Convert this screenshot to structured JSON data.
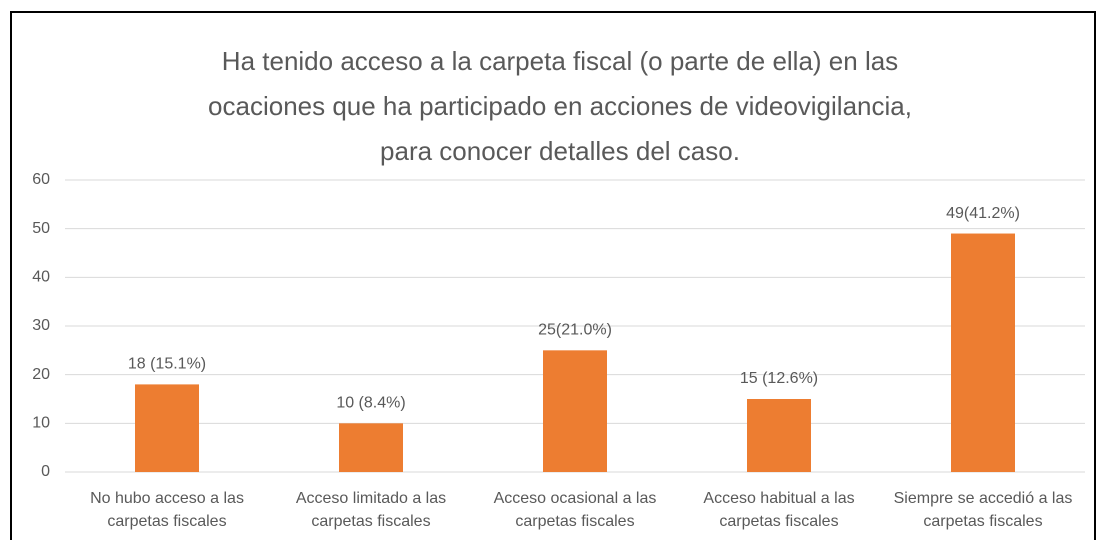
{
  "chart_data": {
    "type": "bar",
    "title": [
      "Ha tenido acceso a la carpeta fiscal (o parte de ella) en las",
      "ocaciones que ha participado en acciones de videovigilancia,",
      "para conocer detalles del caso."
    ],
    "categories": [
      "No hubo acceso a las carpetas fiscales",
      "Acceso limitado a las carpetas fiscales",
      "Acceso ocasional a las carpetas fiscales",
      "Acceso habitual a las carpetas fiscales",
      "Siempre se accedió a las carpetas fiscales"
    ],
    "values": [
      18,
      10,
      25,
      15,
      49
    ],
    "value_labels": [
      "18 (15.1%)",
      "10 (8.4%)",
      "25(21.0%)",
      "15 (12.6%)",
      "49(41.2%)"
    ],
    "color": "#ed7d31",
    "ylim": [
      0,
      60
    ],
    "yticks": [
      0,
      10,
      20,
      30,
      40,
      50,
      60
    ],
    "grid": true
  }
}
